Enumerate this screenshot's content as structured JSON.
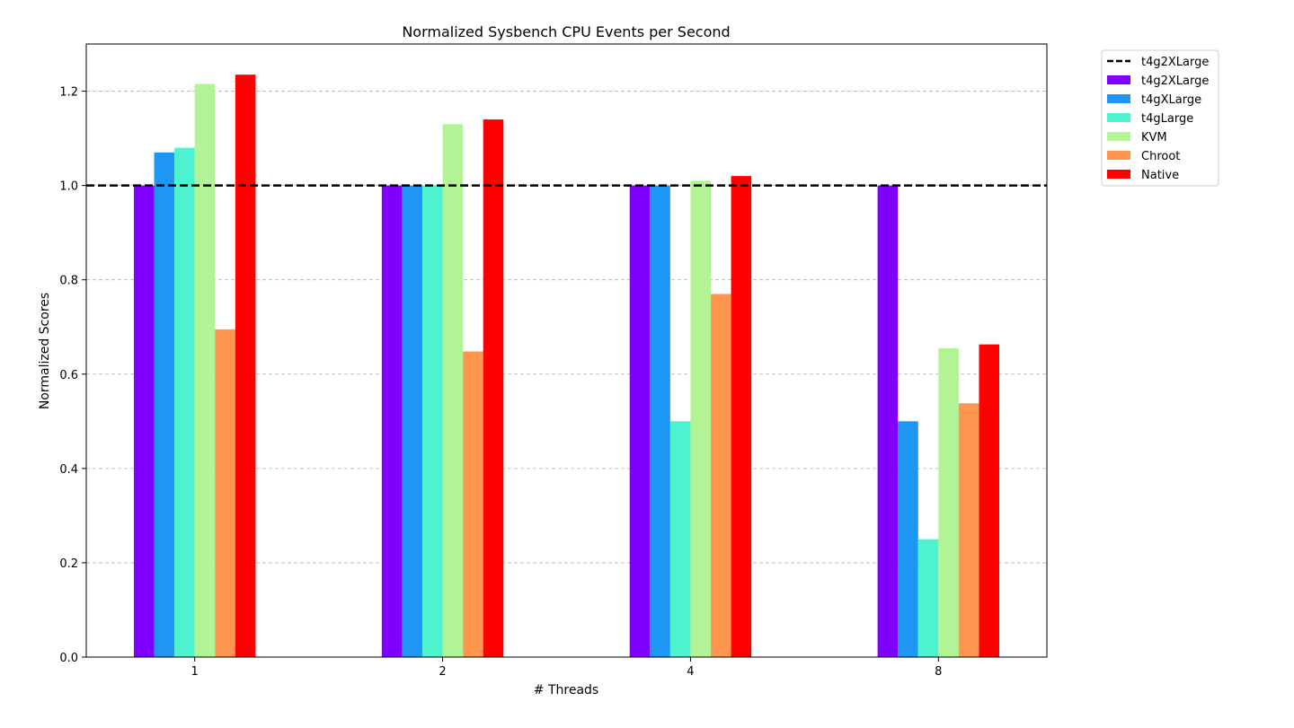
{
  "chart_data": {
    "type": "bar",
    "title": "Normalized Sysbench CPU Events per Second",
    "xlabel": "# Threads",
    "ylabel": "Normalized Scores",
    "categories": [
      "1",
      "2",
      "4",
      "8"
    ],
    "ylim": [
      0,
      1.3
    ],
    "yticks": [
      0.0,
      0.2,
      0.4,
      0.6,
      0.8,
      1.0,
      1.2
    ],
    "ytick_labels": [
      "0.0",
      "0.2",
      "0.4",
      "0.6",
      "0.8",
      "1.0",
      "1.2"
    ],
    "grid": "horizontal dashed",
    "legend_position": "outside top-right",
    "reference_line": {
      "name": "t4g2XLarge",
      "value": 1.0,
      "color": "#000000",
      "style": "dashed"
    },
    "series": [
      {
        "name": "t4g2XLarge",
        "color": "#8000ff",
        "values": [
          1.0,
          1.0,
          1.0,
          1.0
        ]
      },
      {
        "name": "t4gXLarge",
        "color": "#1e96f3",
        "values": [
          1.07,
          1.0,
          1.0,
          0.5
        ]
      },
      {
        "name": "t4gLarge",
        "color": "#4df3ce",
        "values": [
          1.08,
          1.0,
          0.5,
          0.25
        ]
      },
      {
        "name": "KVM",
        "color": "#b2f396",
        "values": [
          1.215,
          1.13,
          1.01,
          0.655
        ]
      },
      {
        "name": "Chroot",
        "color": "#ff964f",
        "values": [
          0.695,
          0.648,
          0.77,
          0.538
        ]
      },
      {
        "name": "Native",
        "color": "#ff0000",
        "values": [
          1.235,
          1.14,
          1.02,
          0.663
        ]
      }
    ]
  }
}
